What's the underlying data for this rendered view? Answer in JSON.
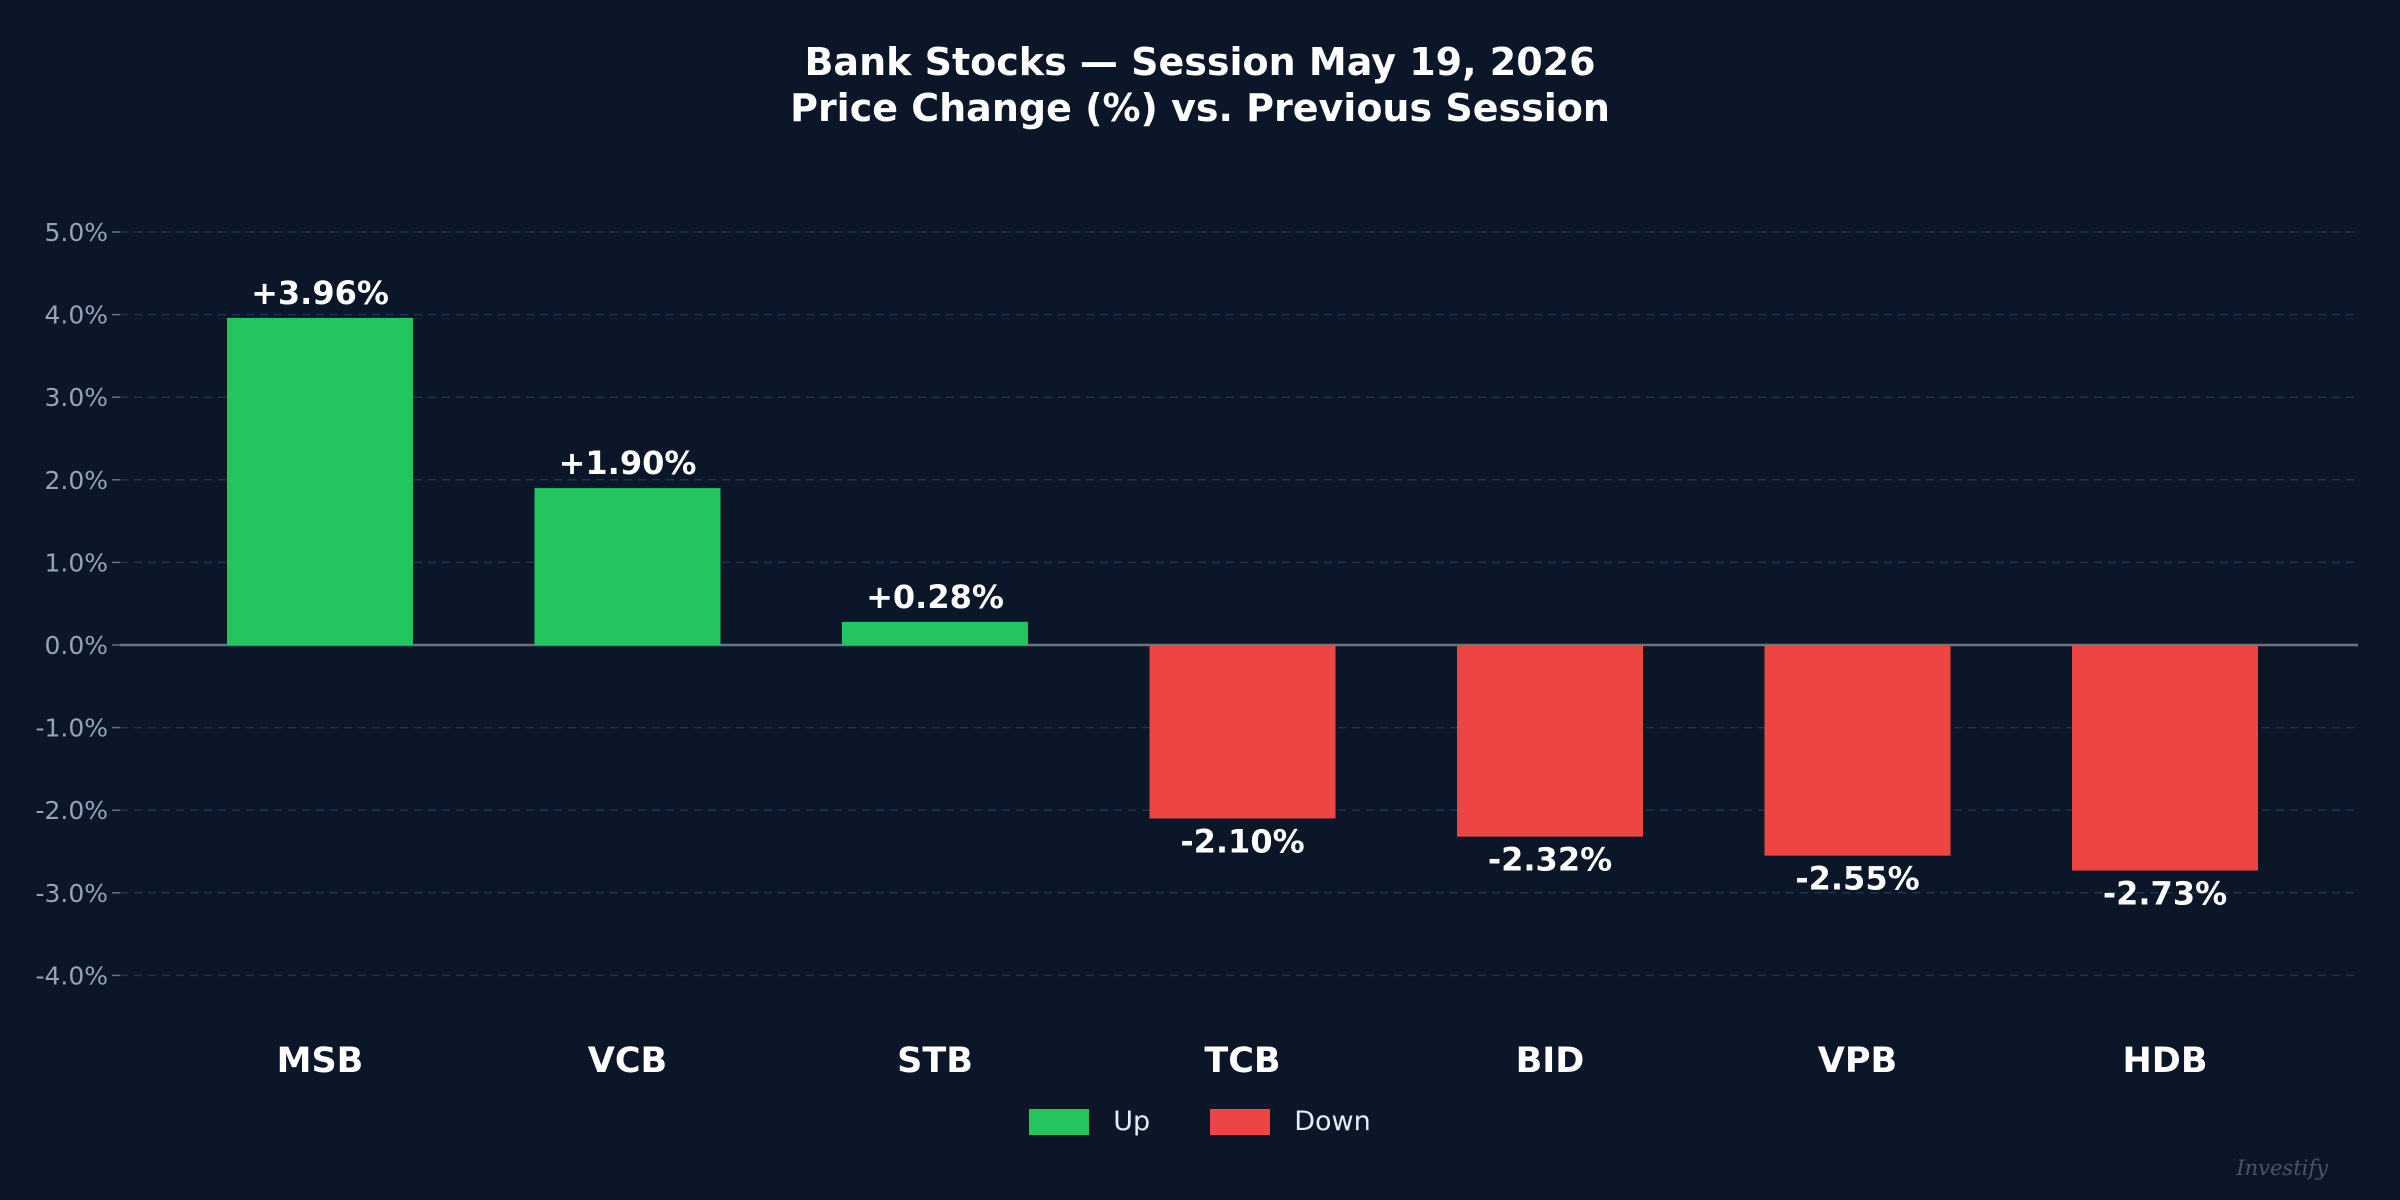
{
  "chart_data": {
    "type": "bar",
    "title": "Bank Stocks — Session May 19, 2026",
    "subtitle": "Price Change (%) vs. Previous Session",
    "categories": [
      "MSB",
      "VCB",
      "STB",
      "TCB",
      "BID",
      "VPB",
      "HDB"
    ],
    "values": [
      3.96,
      1.9,
      0.28,
      -2.1,
      -2.32,
      -2.55,
      -2.73
    ],
    "value_labels": [
      "+3.96%",
      "+1.90%",
      "+0.28%",
      "-2.10%",
      "-2.32%",
      "-2.55%",
      "-2.73%"
    ],
    "ylim": [
      -4.5,
      5.2
    ],
    "yticks": [
      5.0,
      4.0,
      3.0,
      2.0,
      1.0,
      0.0,
      -1.0,
      -2.0,
      -3.0,
      -4.0
    ],
    "ytick_labels": [
      "5.0%",
      "4.0%",
      "3.0%",
      "2.0%",
      "1.0%",
      "0.0%",
      "-1.0%",
      "-2.0%",
      "-3.0%",
      "-4.0%"
    ],
    "grid": true,
    "legend": [
      {
        "label": "Up",
        "color": "#22c55e"
      },
      {
        "label": "Down",
        "color": "#ef4444"
      }
    ],
    "legend_position": "bottom-center",
    "colors": {
      "up": "#22c55e",
      "down": "#ef4444",
      "background": "#0b1628",
      "grid": "#1e3350",
      "zero_line": "#6b7280"
    }
  },
  "watermark": "Investify"
}
